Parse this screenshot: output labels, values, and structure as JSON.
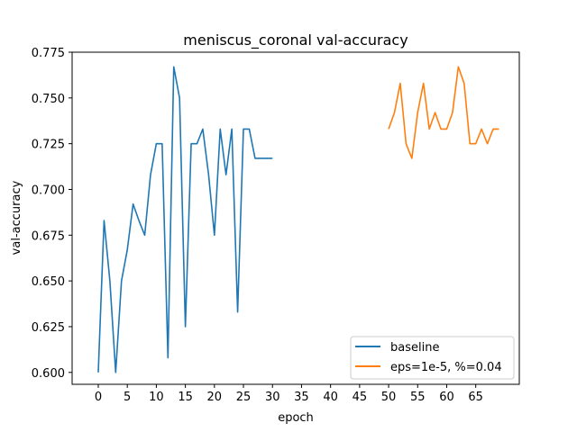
{
  "chart_data": {
    "type": "line",
    "title": "meniscus_coronal val-accuracy",
    "xlabel": "epoch",
    "ylabel": "val-accuracy",
    "xlim": [
      -4.5,
      72.5
    ],
    "ylim": [
      0.5935,
      0.775
    ],
    "xticks": [
      0,
      5,
      10,
      15,
      20,
      25,
      30,
      35,
      40,
      45,
      50,
      55,
      60,
      65
    ],
    "yticks": [
      0.6,
      0.625,
      0.65,
      0.675,
      0.7,
      0.725,
      0.75,
      0.775
    ],
    "ytick_labels": [
      "0.600",
      "0.625",
      "0.650",
      "0.675",
      "0.700",
      "0.725",
      "0.750",
      "0.775"
    ],
    "grid": false,
    "legend_position": "lower-right",
    "series": [
      {
        "name": "baseline",
        "color": "#1f77b4",
        "x": [
          0,
          1,
          2,
          3,
          4,
          5,
          6,
          7,
          8,
          9,
          10,
          11,
          12,
          13,
          14,
          15,
          16,
          17,
          18,
          19,
          20,
          21,
          22,
          23,
          24,
          25,
          26,
          27,
          28,
          29,
          30
        ],
        "y": [
          0.6,
          0.683,
          0.65,
          0.6,
          0.65,
          0.667,
          0.692,
          0.683,
          0.675,
          0.708,
          0.725,
          0.725,
          0.608,
          0.767,
          0.75,
          0.625,
          0.725,
          0.725,
          0.733,
          0.708,
          0.675,
          0.733,
          0.708,
          0.733,
          0.633,
          0.733,
          0.733,
          0.717,
          0.717,
          0.717,
          0.717
        ]
      },
      {
        "name": "eps=1e-5, %=0.04",
        "color": "#ff7f0e",
        "x": [
          50,
          51,
          52,
          53,
          54,
          55,
          56,
          57,
          58,
          59,
          60,
          61,
          62,
          63,
          64,
          65,
          66,
          67,
          68,
          69
        ],
        "y": [
          0.733,
          0.742,
          0.758,
          0.725,
          0.717,
          0.742,
          0.758,
          0.733,
          0.742,
          0.733,
          0.733,
          0.742,
          0.767,
          0.758,
          0.725,
          0.725,
          0.733,
          0.725,
          0.733,
          0.733
        ]
      }
    ]
  }
}
